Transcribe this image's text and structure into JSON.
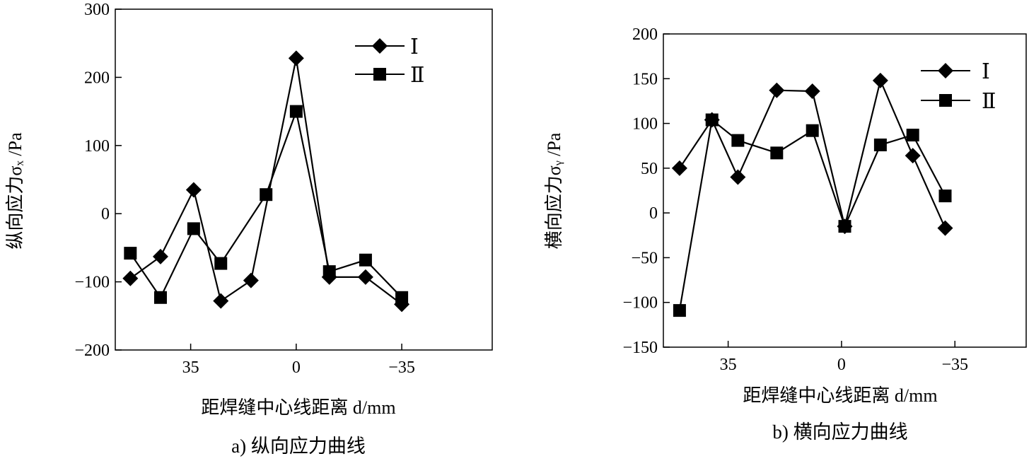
{
  "chart_data": [
    {
      "type": "line",
      "caption": "a) 纵向应力曲线",
      "xlabel": "距焊缝中心线距离 d/mm",
      "ylabel": "纵向应力σₓ /Pa",
      "ylim": [
        -200,
        300
      ],
      "xlim": [
        60,
        -65
      ],
      "yticks": [
        300,
        200,
        100,
        0,
        -100,
        -200
      ],
      "ytick_labels": [
        "300",
        "200",
        "100",
        "0",
        "−100",
        "−200"
      ],
      "xticks": [
        35,
        0,
        -35
      ],
      "xtick_labels": [
        "35",
        "0",
        "−35"
      ],
      "grid": false,
      "legend_position": "top-right",
      "series": [
        {
          "name": "Ⅰ",
          "marker": "diamond",
          "x": [
            55,
            45,
            34,
            25,
            15,
            0,
            -11,
            -23,
            -35
          ],
          "y": [
            -95,
            -63,
            35,
            -128,
            -98,
            228,
            -93,
            -93,
            -133
          ]
        },
        {
          "name": "Ⅱ",
          "marker": "square",
          "x": [
            55,
            45,
            34,
            25,
            10,
            0,
            -11,
            -23,
            -35
          ],
          "y": [
            -58,
            -123,
            -22,
            -73,
            28,
            150,
            -85,
            -68,
            -123
          ]
        }
      ]
    },
    {
      "type": "line",
      "caption": "b) 横向应力曲线",
      "xlabel": "距焊缝中心线距离 d/mm",
      "ylabel": "横向应力σᵧ /Pa",
      "ylim": [
        -150,
        200
      ],
      "xlim": [
        55,
        -57
      ],
      "yticks": [
        200,
        150,
        100,
        50,
        0,
        -50,
        -100,
        -150
      ],
      "ytick_labels": [
        "200",
        "150",
        "100",
        "50",
        "0",
        "−50",
        "−100",
        "−150"
      ],
      "xticks": [
        35,
        0,
        -35
      ],
      "xtick_labels": [
        "35",
        "0",
        "−35"
      ],
      "grid": false,
      "legend_position": "top-right",
      "series": [
        {
          "name": "Ⅰ",
          "marker": "diamond",
          "x": [
            50,
            40,
            32,
            20,
            9,
            -1,
            -12,
            -22,
            -32
          ],
          "y": [
            50,
            104,
            40,
            137,
            136,
            -15,
            148,
            64,
            -17
          ]
        },
        {
          "name": "Ⅱ",
          "marker": "square",
          "x": [
            50,
            40,
            32,
            20,
            9,
            -1,
            -12,
            -22,
            -32
          ],
          "y": [
            -109,
            104,
            81,
            67,
            92,
            -15,
            76,
            87,
            19
          ]
        }
      ]
    }
  ]
}
